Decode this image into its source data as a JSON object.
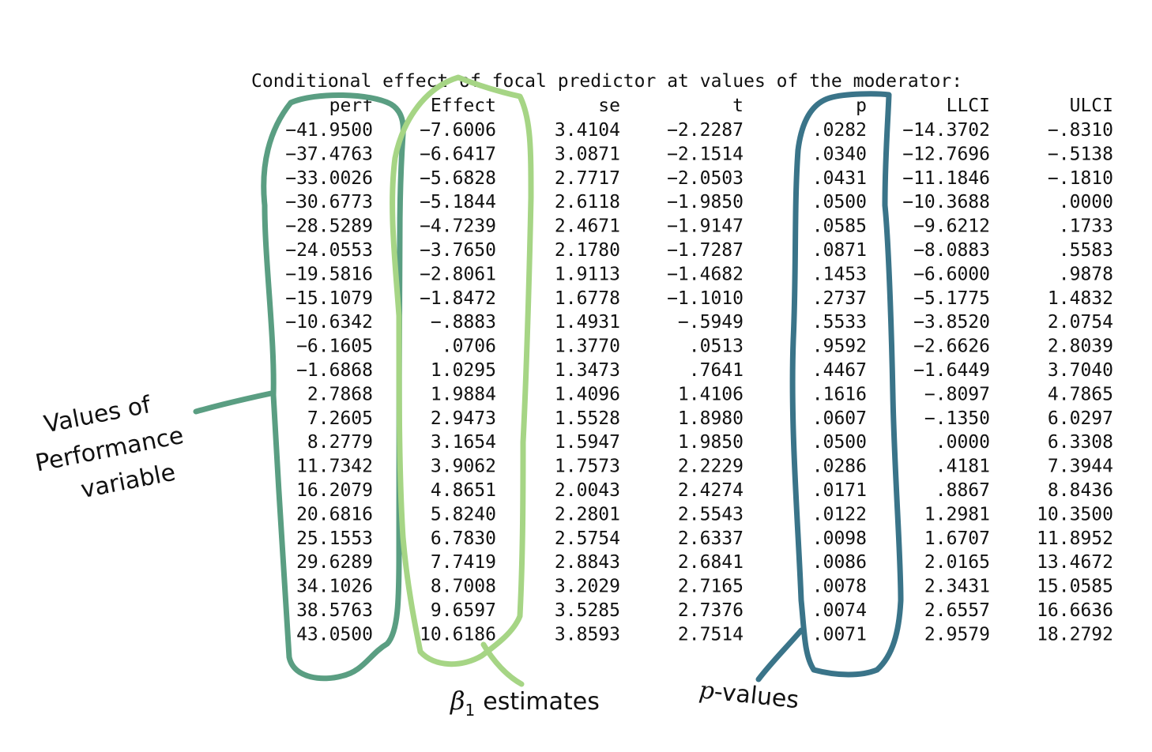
{
  "output": {
    "title": "Conditional effect of focal predictor at values of the moderator:",
    "columns": [
      "perf",
      "Effect",
      "se",
      "t",
      "p",
      "LLCI",
      "ULCI"
    ],
    "rows": [
      [
        "-41.9500",
        "-7.6006",
        "3.4104",
        "-2.2287",
        ".0282",
        "-14.3702",
        "-.8310"
      ],
      [
        "-37.4763",
        "-6.6417",
        "3.0871",
        "-2.1514",
        ".0340",
        "-12.7696",
        "-.5138"
      ],
      [
        "-33.0026",
        "-5.6828",
        "2.7717",
        "-2.0503",
        ".0431",
        "-11.1846",
        "-.1810"
      ],
      [
        "-30.6773",
        "-5.1844",
        "2.6118",
        "-1.9850",
        ".0500",
        "-10.3688",
        ".0000"
      ],
      [
        "-28.5289",
        "-4.7239",
        "2.4671",
        "-1.9147",
        ".0585",
        "-9.6212",
        ".1733"
      ],
      [
        "-24.0553",
        "-3.7650",
        "2.1780",
        "-1.7287",
        ".0871",
        "-8.0883",
        ".5583"
      ],
      [
        "-19.5816",
        "-2.8061",
        "1.9113",
        "-1.4682",
        ".1453",
        "-6.6000",
        ".9878"
      ],
      [
        "-15.1079",
        "-1.8472",
        "1.6778",
        "-1.1010",
        ".2737",
        "-5.1775",
        "1.4832"
      ],
      [
        "-10.6342",
        "-.8883",
        "1.4931",
        "-.5949",
        ".5533",
        "-3.8520",
        "2.0754"
      ],
      [
        "-6.1605",
        ".0706",
        "1.3770",
        ".0513",
        ".9592",
        "-2.6626",
        "2.8039"
      ],
      [
        "-1.6868",
        "1.0295",
        "1.3473",
        ".7641",
        ".4467",
        "-1.6449",
        "3.7040"
      ],
      [
        "2.7868",
        "1.9884",
        "1.4096",
        "1.4106",
        ".1616",
        "-.8097",
        "4.7865"
      ],
      [
        "7.2605",
        "2.9473",
        "1.5528",
        "1.8980",
        ".0607",
        "-.1350",
        "6.0297"
      ],
      [
        "8.2779",
        "3.1654",
        "1.5947",
        "1.9850",
        ".0500",
        ".0000",
        "6.3308"
      ],
      [
        "11.7342",
        "3.9062",
        "1.7573",
        "2.2229",
        ".0286",
        ".4181",
        "7.3944"
      ],
      [
        "16.2079",
        "4.8651",
        "2.0043",
        "2.4274",
        ".0171",
        ".8867",
        "8.8436"
      ],
      [
        "20.6816",
        "5.8240",
        "2.2801",
        "2.5543",
        ".0122",
        "1.2981",
        "10.3500"
      ],
      [
        "25.1553",
        "6.7830",
        "2.5754",
        "2.6337",
        ".0098",
        "1.6707",
        "11.8952"
      ],
      [
        "29.6289",
        "7.7419",
        "2.8843",
        "2.6841",
        ".0086",
        "2.0165",
        "13.4672"
      ],
      [
        "34.1026",
        "8.7008",
        "3.2029",
        "2.7165",
        ".0078",
        "2.3431",
        "15.0585"
      ],
      [
        "38.5763",
        "9.6597",
        "3.5285",
        "2.7376",
        ".0074",
        "2.6557",
        "16.6636"
      ],
      [
        "43.0500",
        "10.6186",
        "3.8593",
        "2.7514",
        ".0071",
        "2.9579",
        "18.2792"
      ]
    ]
  },
  "annotations": {
    "perf_label_lines": [
      "Values of",
      "Performance",
      "variable"
    ],
    "beta_symbol": "β",
    "beta_subscript": "1",
    "beta_text": "estimates",
    "p_symbol": "p",
    "p_text": "-values",
    "colors": {
      "perf_loop": "#5a9e82",
      "effect_loop": "#a6d585",
      "p_loop": "#3a7489"
    }
  }
}
